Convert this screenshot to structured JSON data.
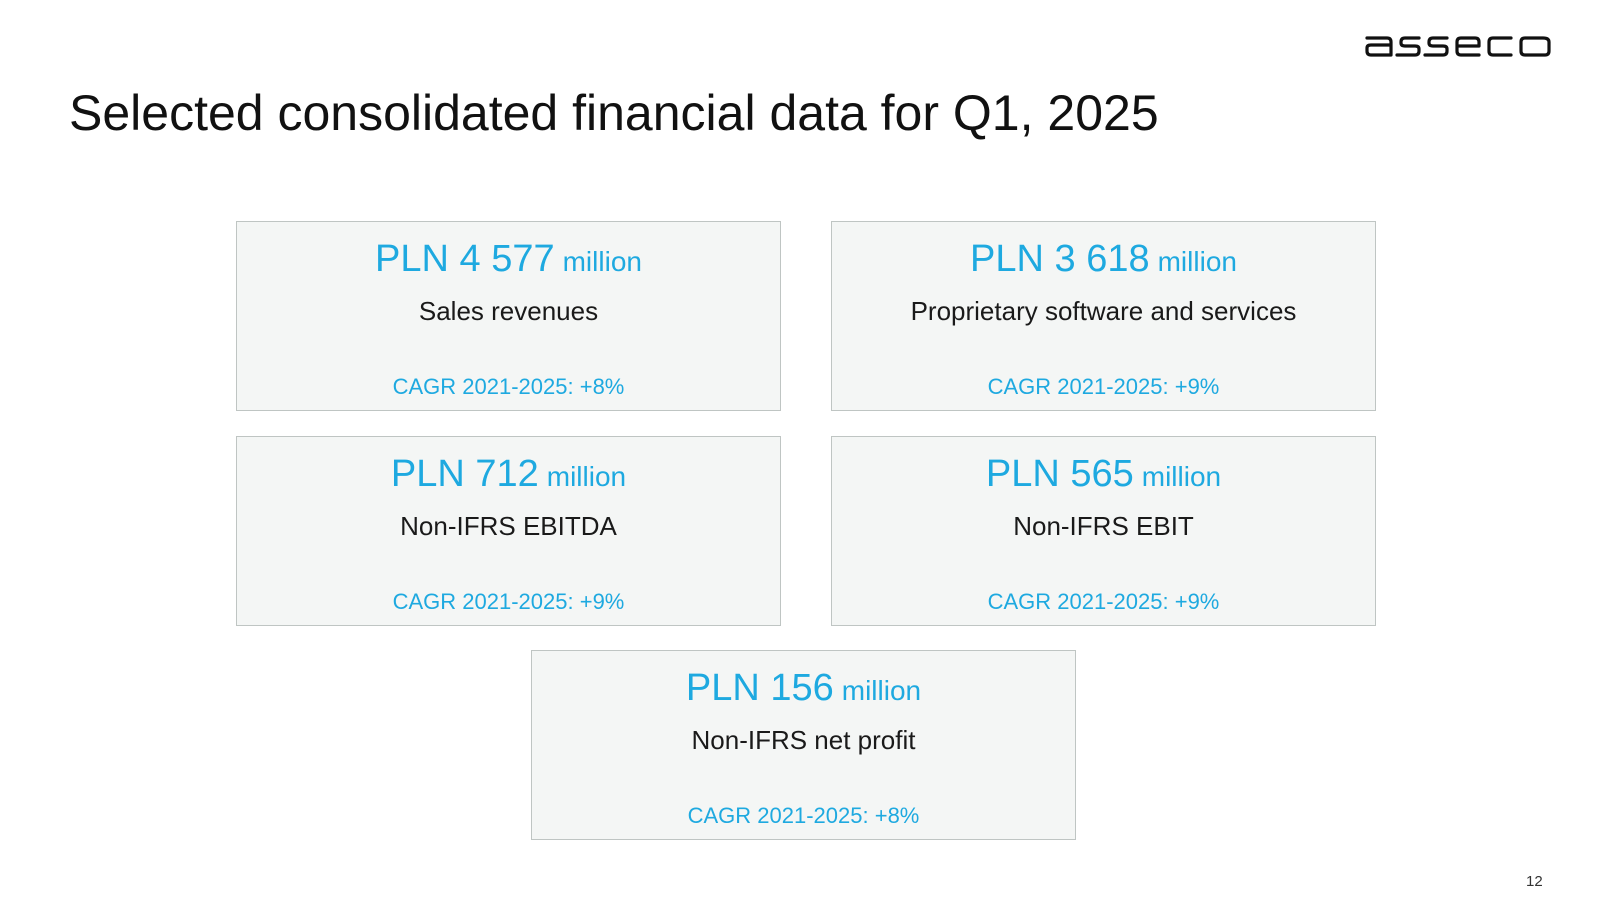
{
  "logo": {
    "text": "asseco"
  },
  "title": "Selected consolidated financial data for Q1, 2025",
  "cards": [
    {
      "value": "PLN 4 577",
      "unit": "million",
      "label": "Sales revenues",
      "cagr": "CAGR 2021-2025: +8%"
    },
    {
      "value": "PLN 3 618",
      "unit": "million",
      "label": "Proprietary software and services",
      "cagr": "CAGR 2021-2025: +9%"
    },
    {
      "value": "PLN 712",
      "unit": "million",
      "label": "Non-IFRS EBITDA",
      "cagr": "CAGR 2021-2025: +9%"
    },
    {
      "value": "PLN 565",
      "unit": "million",
      "label": "Non-IFRS EBIT",
      "cagr": "CAGR 2021-2025: +9%"
    },
    {
      "value": "PLN 156",
      "unit": "million",
      "label": "Non-IFRS net profit",
      "cagr": "CAGR 2021-2025: +8%"
    }
  ],
  "page_number": "12",
  "colors": {
    "accent": "#1ea9e0",
    "card_bg": "#f4f6f5",
    "card_border": "#bfc5c3",
    "text": "#1a1a1a"
  }
}
